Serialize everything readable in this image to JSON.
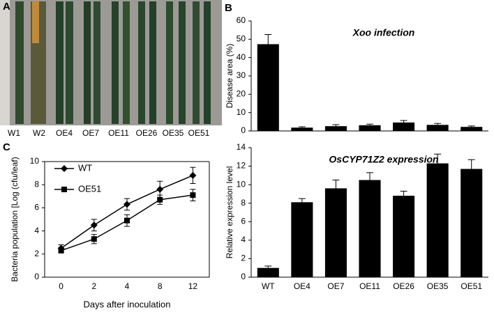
{
  "panels": [
    "A",
    "B",
    "C"
  ],
  "photo": {
    "labels": [
      "W1",
      "W2",
      "OE4",
      "OE7",
      "OE11",
      "OE26",
      "OE35",
      "OE51"
    ]
  },
  "chart_data": [
    {
      "type": "bar",
      "title": "Xoo infection",
      "ylabel": "Disease area (%)",
      "categories": [
        null,
        null,
        null,
        null,
        null,
        null,
        null
      ],
      "values": [
        47.3,
        1.8,
        2.6,
        3.1,
        4.6,
        3.3,
        2.2
      ],
      "errors": [
        5.3,
        0.5,
        0.8,
        0.6,
        1.1,
        0.8,
        0.5
      ],
      "color": "#000000",
      "ylim": [
        0,
        60
      ],
      "yticks": [
        0,
        10,
        20,
        30,
        40,
        50,
        60
      ]
    },
    {
      "type": "bar",
      "title": "OsCYP71Z2  expression",
      "ylabel": "Relative expression level",
      "categories": [
        "WT",
        "OE4",
        "OE7",
        "OE11",
        "OE26",
        "OE35",
        "OE51"
      ],
      "values": [
        1.0,
        8.1,
        9.6,
        10.5,
        8.8,
        12.3,
        11.7
      ],
      "errors": [
        0.2,
        0.4,
        0.9,
        0.8,
        0.5,
        1.0,
        1.0
      ],
      "color": "#000000",
      "ylim": [
        0,
        14
      ],
      "yticks": [
        0,
        2,
        4,
        6,
        8,
        10,
        12,
        14
      ]
    },
    {
      "type": "line",
      "xlabel": "Days after inoculation",
      "ylabel": "Bacteria population [Log (cfu/leaf)",
      "categories": [
        "0",
        "2",
        "4",
        "8",
        "12"
      ],
      "series": [
        {
          "name": "WT",
          "color": "#000000",
          "marker": "diamond",
          "values": [
            2.5,
            4.5,
            6.3,
            7.6,
            8.8
          ],
          "errors": [
            0.3,
            0.5,
            0.5,
            0.7,
            0.7
          ]
        },
        {
          "name": "OE51",
          "color": "#000000",
          "marker": "square",
          "values": [
            2.3,
            3.3,
            4.9,
            6.7,
            7.1
          ],
          "errors": [
            0.2,
            0.4,
            0.5,
            0.4,
            0.5
          ]
        }
      ],
      "ylim": [
        0,
        10
      ],
      "yticks": [
        0,
        2,
        4,
        6,
        8,
        10
      ],
      "legend": "upper left"
    }
  ]
}
